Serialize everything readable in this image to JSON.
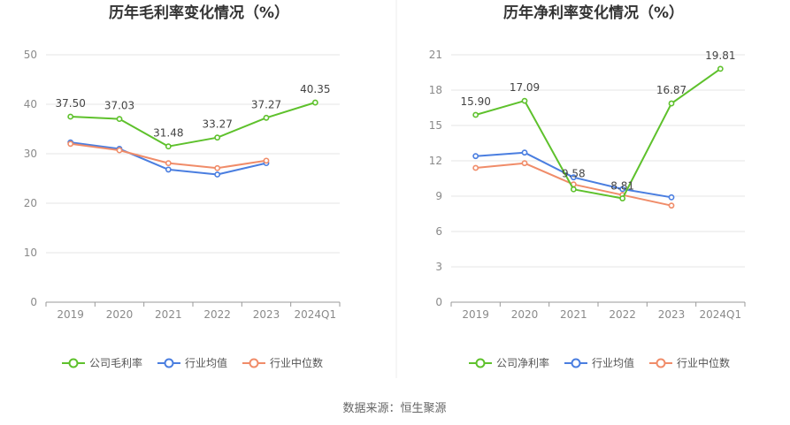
{
  "footer": {
    "source": "数据来源：恒生聚源"
  },
  "chart_data": [
    {
      "type": "line",
      "title": "历年毛利率变化情况（%）",
      "categories": [
        "2019",
        "2020",
        "2021",
        "2022",
        "2023",
        "2024Q1"
      ],
      "ylim": [
        0,
        50
      ],
      "yticks": [
        0,
        10,
        20,
        30,
        40,
        50
      ],
      "grid": true,
      "legend_position": "bottom",
      "series": [
        {
          "name": "公司毛利率",
          "color": "#5ec12c",
          "values": [
            37.5,
            37.03,
            31.48,
            33.27,
            37.27,
            40.35
          ],
          "labels": [
            "37.50",
            "37.03",
            "31.48",
            "33.27",
            "37.27",
            "40.35"
          ]
        },
        {
          "name": "行业均值",
          "color": "#4a7ee0",
          "values": [
            32.3,
            31.0,
            26.8,
            25.8,
            28.1,
            null
          ]
        },
        {
          "name": "行业中位数",
          "color": "#f08c69",
          "values": [
            32.0,
            30.7,
            28.1,
            27.1,
            28.6,
            null
          ]
        }
      ]
    },
    {
      "type": "line",
      "title": "历年净利率变化情况（%）",
      "categories": [
        "2019",
        "2020",
        "2021",
        "2022",
        "2023",
        "2024Q1"
      ],
      "ylim": [
        0,
        21
      ],
      "yticks": [
        0,
        3,
        6,
        9,
        12,
        15,
        18,
        21
      ],
      "grid": true,
      "legend_position": "bottom",
      "series": [
        {
          "name": "公司净利率",
          "color": "#5ec12c",
          "values": [
            15.9,
            17.09,
            9.58,
            8.81,
            16.87,
            19.81
          ],
          "labels": [
            "15.90",
            "17.09",
            "9.58",
            "8.81",
            "16.87",
            "19.81"
          ]
        },
        {
          "name": "行业均值",
          "color": "#4a7ee0",
          "values": [
            12.4,
            12.7,
            10.6,
            9.6,
            8.9,
            null
          ]
        },
        {
          "name": "行业中位数",
          "color": "#f08c69",
          "values": [
            11.4,
            11.8,
            10.0,
            9.1,
            8.2,
            null
          ]
        }
      ]
    }
  ]
}
